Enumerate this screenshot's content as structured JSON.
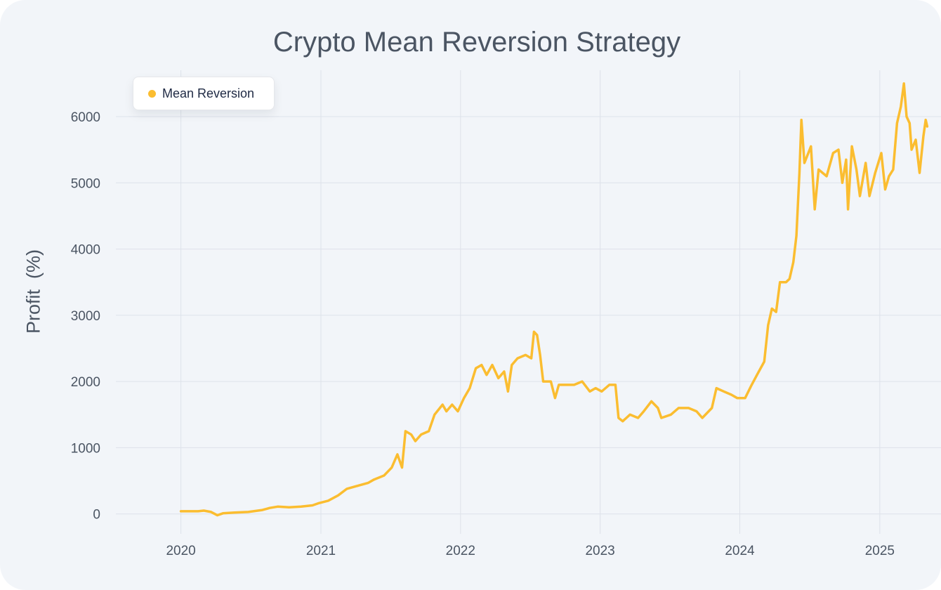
{
  "chart_data": {
    "type": "line",
    "title": "Crypto Mean Reversion Strategy",
    "xlabel": "",
    "ylabel": "Profit  (%)",
    "x_ticks": [
      "2020",
      "2021",
      "2022",
      "2023",
      "2024",
      "2025"
    ],
    "y_ticks": [
      "0",
      "1000",
      "2000",
      "3000",
      "4000",
      "5000",
      "6000"
    ],
    "xlim": [
      "2019-07-15",
      "2025-06-10"
    ],
    "ylim": [
      -300,
      6700
    ],
    "grid": true,
    "legend_position": "top-left",
    "series": [
      {
        "name": "Mean Reversion",
        "color": "#fbbd30",
        "points": [
          [
            "2020-01-01",
            40
          ],
          [
            "2020-02-15",
            40
          ],
          [
            "2020-03-01",
            50
          ],
          [
            "2020-03-20",
            30
          ],
          [
            "2020-04-05",
            -20
          ],
          [
            "2020-04-20",
            10
          ],
          [
            "2020-05-20",
            20
          ],
          [
            "2020-06-25",
            30
          ],
          [
            "2020-08-01",
            60
          ],
          [
            "2020-08-20",
            90
          ],
          [
            "2020-09-10",
            110
          ],
          [
            "2020-10-10",
            100
          ],
          [
            "2020-11-10",
            110
          ],
          [
            "2020-12-10",
            130
          ],
          [
            "2020-12-25",
            160
          ],
          [
            "2021-01-20",
            200
          ],
          [
            "2021-02-15",
            280
          ],
          [
            "2021-03-10",
            380
          ],
          [
            "2021-04-10",
            430
          ],
          [
            "2021-05-05",
            470
          ],
          [
            "2021-05-20",
            520
          ],
          [
            "2021-06-15",
            580
          ],
          [
            "2021-07-05",
            700
          ],
          [
            "2021-07-20",
            900
          ],
          [
            "2021-08-01",
            700
          ],
          [
            "2021-08-10",
            1250
          ],
          [
            "2021-08-25",
            1200
          ],
          [
            "2021-09-05",
            1100
          ],
          [
            "2021-09-20",
            1200
          ],
          [
            "2021-10-10",
            1250
          ],
          [
            "2021-10-25",
            1500
          ],
          [
            "2021-11-15",
            1650
          ],
          [
            "2021-11-25",
            1550
          ],
          [
            "2021-12-10",
            1650
          ],
          [
            "2021-12-25",
            1550
          ],
          [
            "2022-01-10",
            1750
          ],
          [
            "2022-01-25",
            1900
          ],
          [
            "2022-02-10",
            2200
          ],
          [
            "2022-02-25",
            2250
          ],
          [
            "2022-03-10",
            2100
          ],
          [
            "2022-03-25",
            2250
          ],
          [
            "2022-04-10",
            2050
          ],
          [
            "2022-04-25",
            2150
          ],
          [
            "2022-05-05",
            1850
          ],
          [
            "2022-05-15",
            2250
          ],
          [
            "2022-05-30",
            2350
          ],
          [
            "2022-06-20",
            2400
          ],
          [
            "2022-07-05",
            2350
          ],
          [
            "2022-07-12",
            2750
          ],
          [
            "2022-07-20",
            2700
          ],
          [
            "2022-07-28",
            2400
          ],
          [
            "2022-08-05",
            2000
          ],
          [
            "2022-08-25",
            2000
          ],
          [
            "2022-09-05",
            1750
          ],
          [
            "2022-09-15",
            1950
          ],
          [
            "2022-10-05",
            1950
          ],
          [
            "2022-10-25",
            1950
          ],
          [
            "2022-11-15",
            2000
          ],
          [
            "2022-12-05",
            1850
          ],
          [
            "2022-12-20",
            1900
          ],
          [
            "2023-01-05",
            1850
          ],
          [
            "2023-01-25",
            1950
          ],
          [
            "2023-02-10",
            1950
          ],
          [
            "2023-02-18",
            1450
          ],
          [
            "2023-03-01",
            1400
          ],
          [
            "2023-03-20",
            1500
          ],
          [
            "2023-04-10",
            1450
          ],
          [
            "2023-04-25",
            1550
          ],
          [
            "2023-05-15",
            1700
          ],
          [
            "2023-06-01",
            1600
          ],
          [
            "2023-06-10",
            1450
          ],
          [
            "2023-07-05",
            1500
          ],
          [
            "2023-07-25",
            1600
          ],
          [
            "2023-08-20",
            1600
          ],
          [
            "2023-09-10",
            1550
          ],
          [
            "2023-09-25",
            1450
          ],
          [
            "2023-10-20",
            1600
          ],
          [
            "2023-11-01",
            1900
          ],
          [
            "2023-11-20",
            1850
          ],
          [
            "2023-12-10",
            1800
          ],
          [
            "2023-12-25",
            1750
          ],
          [
            "2024-01-15",
            1750
          ],
          [
            "2024-02-01",
            1950
          ],
          [
            "2024-02-15",
            2100
          ],
          [
            "2024-03-05",
            2300
          ],
          [
            "2024-03-15",
            2850
          ],
          [
            "2024-03-25",
            3100
          ],
          [
            "2024-04-05",
            3050
          ],
          [
            "2024-04-15",
            3500
          ],
          [
            "2024-05-01",
            3500
          ],
          [
            "2024-05-10",
            3550
          ],
          [
            "2024-05-20",
            3800
          ],
          [
            "2024-05-28",
            4200
          ],
          [
            "2024-06-05",
            5150
          ],
          [
            "2024-06-10",
            5950
          ],
          [
            "2024-06-18",
            5300
          ],
          [
            "2024-07-05",
            5550
          ],
          [
            "2024-07-15",
            4600
          ],
          [
            "2024-07-25",
            5200
          ],
          [
            "2024-08-15",
            5100
          ],
          [
            "2024-09-01",
            5450
          ],
          [
            "2024-09-15",
            5500
          ],
          [
            "2024-09-25",
            5000
          ],
          [
            "2024-10-05",
            5350
          ],
          [
            "2024-10-10",
            4600
          ],
          [
            "2024-10-20",
            5550
          ],
          [
            "2024-11-01",
            5200
          ],
          [
            "2024-11-10",
            4800
          ],
          [
            "2024-11-25",
            5300
          ],
          [
            "2024-12-05",
            4800
          ],
          [
            "2024-12-20",
            5150
          ],
          [
            "2025-01-05",
            5450
          ],
          [
            "2025-01-15",
            4900
          ],
          [
            "2025-01-25",
            5100
          ],
          [
            "2025-02-05",
            5200
          ],
          [
            "2025-02-15",
            5900
          ],
          [
            "2025-02-25",
            6150
          ],
          [
            "2025-03-05",
            6500
          ],
          [
            "2025-03-12",
            6000
          ],
          [
            "2025-03-20",
            5900
          ],
          [
            "2025-03-25",
            5500
          ],
          [
            "2025-04-05",
            5650
          ],
          [
            "2025-04-15",
            5150
          ],
          [
            "2025-04-25",
            5700
          ],
          [
            "2025-05-01",
            5950
          ],
          [
            "2025-05-05",
            5850
          ]
        ]
      }
    ]
  }
}
